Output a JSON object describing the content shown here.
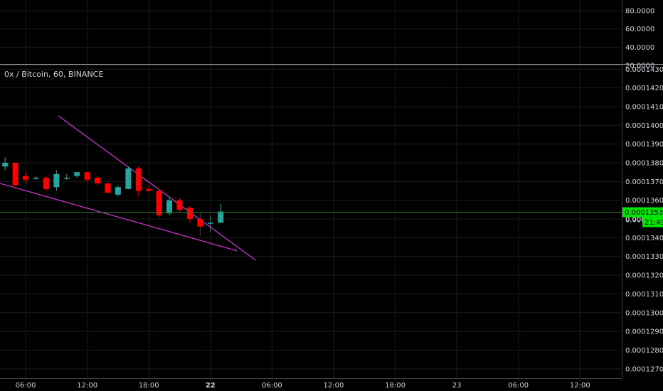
{
  "chart_data": {
    "type": "candlestick",
    "title": "0x / Bitcoin, 60, BINANCE",
    "colors": {
      "background": "#000000",
      "grid": "#1c1c1c",
      "up": "#26a69a",
      "down": "#ff0000",
      "trendline": "#cc33cc",
      "price_line": "#2e7d32",
      "badge": "#00e600",
      "axis_text": "#d1d4dc"
    },
    "indicator_pane": {
      "tick_labels": [
        "80.0000",
        "60.0000",
        "40.0000",
        "20.0000"
      ],
      "range": [
        20,
        80
      ]
    },
    "price_pane": {
      "ylim": [
        0.0001265,
        0.0001432
      ],
      "tick_labels": [
        "0.00014300",
        "0.00014200",
        "0.00014100",
        "0.00014000",
        "0.00013900",
        "0.00013800",
        "0.00013700",
        "0.00013600",
        "0.00013500",
        "0.00013400",
        "0.00013300",
        "0.00013200",
        "0.00013100",
        "0.00013000",
        "0.00012900",
        "0.00012800",
        "0.00012700"
      ],
      "tick_values": [
        0.000143,
        0.000142,
        0.000141,
        0.00014,
        0.000139,
        0.000138,
        0.000137,
        0.000136,
        0.000135,
        0.000134,
        0.000133,
        0.000132,
        0.000131,
        0.00013,
        0.000129,
        0.000128,
        0.000127
      ],
      "current_price": 0.00013536,
      "current_price_label": "0.00013536",
      "countdown_label": "21:49",
      "hidden_tick_label": "0.000"
    },
    "x_axis": {
      "labels": [
        {
          "text": "06:00",
          "t": 6,
          "bold": false
        },
        {
          "text": "12:00",
          "t": 12,
          "bold": false
        },
        {
          "text": "18:00",
          "t": 18,
          "bold": false
        },
        {
          "text": "22",
          "t": 24,
          "bold": true
        },
        {
          "text": "06:00",
          "t": 30,
          "bold": false
        },
        {
          "text": "12:00",
          "t": 36,
          "bold": false
        },
        {
          "text": "18:00",
          "t": 42,
          "bold": false
        },
        {
          "text": "23",
          "t": 48,
          "bold": false
        },
        {
          "text": "06:00",
          "t": 54,
          "bold": false
        },
        {
          "text": "12:00",
          "t": 60,
          "bold": false
        }
      ],
      "xlim": [
        3.5,
        64
      ]
    },
    "candles": [
      {
        "t": 4,
        "o": 0.0001378,
        "h": 0.0001383,
        "l": 0.0001376,
        "c": 0.000138
      },
      {
        "t": 5,
        "o": 0.000138,
        "h": 0.000138,
        "l": 0.0001368,
        "c": 0.0001368
      },
      {
        "t": 6,
        "o": 0.0001373,
        "h": 0.0001375,
        "l": 0.0001369,
        "c": 0.0001371
      },
      {
        "t": 7,
        "o": 0.0001372,
        "h": 0.0001373,
        "l": 0.0001371,
        "c": 0.0001372
      },
      {
        "t": 8,
        "o": 0.0001372,
        "h": 0.0001373,
        "l": 0.0001365,
        "c": 0.0001366
      },
      {
        "t": 9,
        "o": 0.0001367,
        "h": 0.0001376,
        "l": 0.0001365,
        "c": 0.0001374
      },
      {
        "t": 10,
        "o": 0.0001372,
        "h": 0.0001374,
        "l": 0.0001371,
        "c": 0.0001372
      },
      {
        "t": 11,
        "o": 0.0001373,
        "h": 0.0001375,
        "l": 0.0001372,
        "c": 0.0001375
      },
      {
        "t": 12,
        "o": 0.0001375,
        "h": 0.0001375,
        "l": 0.000137,
        "c": 0.0001371
      },
      {
        "t": 13,
        "o": 0.0001372,
        "h": 0.0001373,
        "l": 0.0001368,
        "c": 0.0001369
      },
      {
        "t": 14,
        "o": 0.0001369,
        "h": 0.000137,
        "l": 0.0001364,
        "c": 0.0001364
      },
      {
        "t": 15,
        "o": 0.0001363,
        "h": 0.0001368,
        "l": 0.0001362,
        "c": 0.0001367
      },
      {
        "t": 16,
        "o": 0.0001366,
        "h": 0.0001378,
        "l": 0.0001366,
        "c": 0.0001377
      },
      {
        "t": 17,
        "o": 0.0001377,
        "h": 0.0001378,
        "l": 0.0001362,
        "c": 0.0001365
      },
      {
        "t": 18,
        "o": 0.0001366,
        "h": 0.0001368,
        "l": 0.0001364,
        "c": 0.0001365
      },
      {
        "t": 19,
        "o": 0.0001365,
        "h": 0.0001366,
        "l": 0.0001351,
        "c": 0.0001352
      },
      {
        "t": 20,
        "o": 0.0001353,
        "h": 0.0001362,
        "l": 0.0001352,
        "c": 0.000136
      },
      {
        "t": 21,
        "o": 0.000136,
        "h": 0.0001361,
        "l": 0.0001354,
        "c": 0.0001355
      },
      {
        "t": 22,
        "o": 0.0001356,
        "h": 0.0001357,
        "l": 0.0001348,
        "c": 0.000135
      },
      {
        "t": 23,
        "o": 0.000135,
        "h": 0.0001353,
        "l": 0.0001341,
        "c": 0.0001346
      },
      {
        "t": 24,
        "o": 0.0001348,
        "h": 0.0001352,
        "l": 0.0001343,
        "c": 0.0001348
      },
      {
        "t": 25,
        "o": 0.0001348,
        "h": 0.0001358,
        "l": 0.0001348,
        "c": 0.0001354
      }
    ],
    "trendlines": [
      {
        "name": "upper",
        "t1": 9.2,
        "p1": 0.0001405,
        "t2": 28.4,
        "p2": 0.0001328
      },
      {
        "name": "lower",
        "t1": 3.5,
        "p1": 0.0001369,
        "t2": 26.6,
        "p2": 0.0001333
      }
    ]
  }
}
